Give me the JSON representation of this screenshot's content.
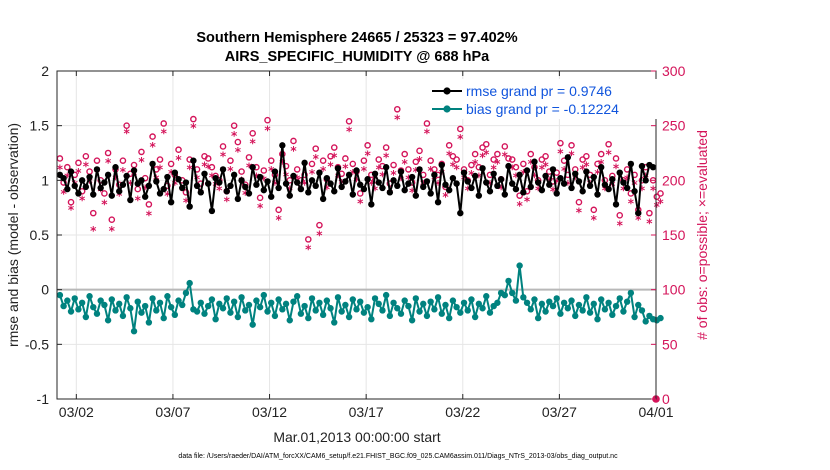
{
  "chart_data": {
    "type": "line",
    "title": "Southern Hemisphere 24665 / 25323 = 97.402%",
    "subtitle": "AIRS_SPECIFIC_HUMIDITY @ 688 hPa",
    "xlabel": "Mar.01,2013 00:00:00 start",
    "ylabel": "rmse and bias (model - observation)",
    "ylabel_right": "# of obs: o=possible; ×=evaluated",
    "xlim": [
      0,
      31
    ],
    "ylim": [
      -1,
      2
    ],
    "ylim_right": [
      0,
      300
    ],
    "x_ticks": [
      1,
      6,
      11,
      16,
      21,
      26,
      31
    ],
    "x_tick_labels": [
      "03/02",
      "03/07",
      "03/12",
      "03/17",
      "03/22",
      "03/27",
      "04/01"
    ],
    "y_ticks": [
      -1,
      -0.5,
      0,
      0.5,
      1,
      1.5,
      2
    ],
    "y_tick_labels": [
      "-1",
      "-0.5",
      "0",
      "0.5",
      "1",
      "1.5",
      "2"
    ],
    "y_right_ticks": [
      0,
      50,
      100,
      150,
      200,
      250,
      300
    ],
    "y_right_tick_labels": [
      "0",
      "50",
      "100",
      "150",
      "200",
      "250",
      "300"
    ],
    "grid": true,
    "legend_position": "top-right",
    "series": [
      {
        "name": "rmse",
        "label": "rmse grand pr = 0.9746",
        "color": "#000000",
        "axis": "left",
        "values": [
          1.05,
          1.02,
          0.92,
          1.08,
          0.95,
          0.88,
          1.0,
          0.94,
          1.03,
          0.87,
          1.1,
          0.93,
          0.98,
          1.05,
          0.86,
          1.12,
          0.9,
          0.96,
          1.04,
          0.82,
          1.09,
          0.97,
          1.0,
          0.85,
          0.95,
          1.15,
          0.99,
          0.88,
          0.92,
          1.03,
          0.8,
          1.07,
          1.01,
          0.93,
          0.98,
          0.76,
          1.18,
          0.95,
          0.89,
          1.06,
          0.97,
          0.72,
          1.02,
          0.98,
          1.1,
          0.9,
          0.95,
          1.05,
          0.83,
          1.0,
          0.94,
          0.88,
          1.12,
          0.96,
          1.03,
          0.91,
          0.99,
          0.85,
          1.08,
          0.93,
          1.32,
          0.97,
          0.86,
          1.04,
          0.98,
          0.92,
          1.16,
          0.89,
          1.0,
          0.95,
          1.07,
          0.83,
          1.02,
          0.97,
          0.9,
          1.11,
          0.94,
          0.99,
          1.05,
          0.87,
          1.09,
          0.96,
          0.92,
          1.01,
          0.78,
          1.06,
          0.98,
          0.93,
          1.12,
          0.89,
          1.0,
          0.95,
          1.08,
          0.91,
          0.97,
          1.03,
          0.86,
          1.1,
          0.94,
          0.99,
          0.88,
          1.05,
          0.8,
          1.14,
          0.96,
          0.91,
          1.02,
          0.97,
          0.7,
          1.07,
          0.99,
          0.93,
          1.04,
          0.86,
          1.11,
          0.98,
          0.9,
          1.06,
          0.95,
          1.01,
          0.87,
          1.13,
          0.97,
          0.92,
          1.05,
          0.89,
          1.09,
          0.94,
          1.17,
          0.98,
          0.91,
          1.04,
          0.96,
          1.1,
          0.88,
          1.02,
          0.97,
          1.21,
          0.93,
          1.06,
          0.99,
          0.9,
          1.08,
          0.95,
          1.03,
          0.87,
          1.12,
          0.96,
          0.92,
          1.01,
          0.78,
          1.07,
          0.98,
          0.93,
          1.15,
          0.9,
          0.7,
          1.13,
          1.0,
          1.14,
          1.12
        ]
      },
      {
        "name": "bias",
        "label": "bias grand pr = -0.12224",
        "color": "#00827f",
        "axis": "left",
        "values": [
          -0.05,
          -0.15,
          -0.1,
          -0.2,
          -0.08,
          -0.18,
          -0.12,
          -0.25,
          -0.06,
          -0.16,
          -0.22,
          -0.1,
          -0.14,
          -0.28,
          -0.09,
          -0.19,
          -0.13,
          -0.24,
          -0.07,
          -0.17,
          -0.38,
          -0.11,
          -0.21,
          -0.15,
          -0.3,
          -0.08,
          -0.19,
          -0.12,
          -0.26,
          -0.06,
          -0.16,
          -0.23,
          -0.1,
          -0.14,
          -0.03,
          0.06,
          -0.18,
          -0.2,
          -0.12,
          -0.22,
          -0.15,
          -0.09,
          -0.27,
          -0.13,
          -0.17,
          -0.08,
          -0.21,
          -0.11,
          -0.25,
          -0.07,
          -0.19,
          -0.14,
          -0.32,
          -0.1,
          -0.16,
          -0.05,
          -0.2,
          -0.12,
          -0.24,
          -0.09,
          -0.18,
          -0.13,
          -0.28,
          -0.11,
          -0.06,
          -0.22,
          -0.15,
          -0.26,
          -0.08,
          -0.19,
          -0.12,
          -0.23,
          -0.1,
          -0.17,
          -0.3,
          -0.07,
          -0.2,
          -0.14,
          -0.25,
          -0.09,
          -0.18,
          -0.11,
          -0.21,
          -0.16,
          -0.27,
          -0.08,
          -0.13,
          -0.19,
          -0.05,
          -0.24,
          -0.12,
          -0.17,
          -0.22,
          -0.1,
          -0.15,
          -0.28,
          -0.08,
          -0.2,
          -0.13,
          -0.24,
          -0.11,
          -0.18,
          -0.07,
          -0.22,
          -0.14,
          -0.26,
          -0.1,
          -0.16,
          -0.21,
          -0.12,
          -0.19,
          -0.09,
          -0.25,
          -0.13,
          -0.17,
          -0.06,
          -0.21,
          -0.15,
          -0.12,
          -0.03,
          -0.05,
          0.08,
          -0.03,
          -0.1,
          0.22,
          -0.07,
          -0.12,
          -0.18,
          -0.09,
          -0.26,
          -0.13,
          -0.2,
          -0.11,
          -0.15,
          -0.08,
          -0.22,
          -0.12,
          -0.17,
          -0.1,
          -0.24,
          -0.14,
          -0.19,
          -0.07,
          -0.21,
          -0.13,
          -0.27,
          -0.09,
          -0.18,
          -0.12,
          -0.23,
          -0.15,
          -0.08,
          -0.2,
          -0.11,
          -0.03,
          -0.25,
          -0.14,
          -0.19,
          -0.29,
          -0.24,
          -0.27,
          -0.28,
          -0.26
        ]
      },
      {
        "name": "possible",
        "label": "# obs possible (o)",
        "color": "#d4145a",
        "axis": "right",
        "values": [
          220,
          198,
          212,
          180,
          205,
          216,
          190,
          222,
          208,
          170,
          218,
          200,
          188,
          225,
          164,
          210,
          196,
          218,
          250,
          206,
          214,
          192,
          226,
          202,
          178,
          240,
          210,
          219,
          252,
          195,
          215,
          205,
          228,
          200,
          189,
          219,
          256,
          210,
          197,
          222,
          220,
          212,
          204,
          200,
          231,
          190,
          218,
          250,
          235,
          208,
          196,
          221,
          243,
          212,
          184,
          209,
          255,
          218,
          205,
          173,
          224,
          213,
          200,
          236,
          210,
          200,
          205,
          146,
          215,
          229,
          159,
          218,
          201,
          222,
          230,
          212,
          206,
          220,
          254,
          215,
          208,
          188,
          218,
          232,
          205,
          200,
          219,
          213,
          230,
          197,
          214,
          265,
          209,
          224,
          210,
          198,
          217,
          227,
          205,
          252,
          218,
          210,
          205,
          215,
          194,
          232,
          222,
          219,
          247,
          210,
          200,
          214,
          224,
          212,
          230,
          233,
          205,
          219,
          224,
          201,
          231,
          220,
          219,
          212,
          186,
          215,
          190,
          224,
          212,
          200,
          219,
          222,
          208,
          199,
          207,
          234,
          218,
          205,
          232,
          210,
          180,
          219,
          222,
          205,
          173,
          215,
          224,
          200,
          233,
          204,
          220,
          168,
          200,
          210,
          188,
          205,
          173,
          200,
          212,
          170,
          200,
          185,
          188
        ]
      },
      {
        "name": "evaluated",
        "label": "# obs evaluated (×)",
        "color": "#d4145a",
        "axis": "right",
        "values": [
          212,
          190,
          205,
          175,
          198,
          209,
          184,
          215,
          200,
          156,
          210,
          192,
          180,
          218,
          156,
          203,
          188,
          210,
          245,
          198,
          207,
          184,
          219,
          194,
          170,
          233,
          203,
          212,
          245,
          188,
          208,
          198,
          221,
          193,
          182,
          212,
          250,
          203,
          190,
          215,
          213,
          205,
          197,
          193,
          224,
          183,
          211,
          243,
          228,
          201,
          189,
          214,
          236,
          205,
          177,
          202,
          248,
          211,
          198,
          166,
          217,
          206,
          193,
          229,
          203,
          193,
          198,
          139,
          208,
          222,
          152,
          211,
          194,
          215,
          223,
          205,
          199,
          213,
          247,
          208,
          201,
          181,
          211,
          225,
          198,
          193,
          212,
          206,
          223,
          190,
          207,
          258,
          202,
          217,
          203,
          191,
          210,
          220,
          198,
          245,
          211,
          203,
          198,
          208,
          187,
          225,
          215,
          212,
          240,
          203,
          193,
          207,
          217,
          205,
          223,
          226,
          198,
          212,
          217,
          194,
          224,
          213,
          212,
          205,
          179,
          208,
          183,
          217,
          205,
          193,
          212,
          215,
          201,
          192,
          200,
          227,
          211,
          198,
          225,
          203,
          173,
          212,
          215,
          198,
          166,
          208,
          217,
          193,
          226,
          197,
          213,
          161,
          193,
          203,
          181,
          198,
          166,
          193,
          205,
          163,
          193,
          178,
          181
        ]
      }
    ]
  },
  "footer": "data file: /Users/raeder/DAI/ATM_forcXX/CAM6_setup/f.e21.FHIST_BGC.f09_025.CAM6assim.011/Diags_NTrS_2013-03/obs_diag_output.nc"
}
